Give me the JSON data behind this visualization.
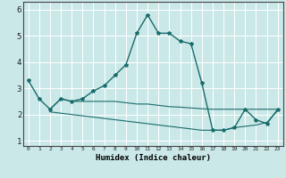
{
  "xlabel": "Humidex (Indice chaleur)",
  "x": [
    0,
    1,
    2,
    3,
    4,
    5,
    6,
    7,
    8,
    9,
    10,
    11,
    12,
    13,
    14,
    15,
    16,
    17,
    18,
    19,
    20,
    21,
    22,
    23
  ],
  "curve_main": [
    3.3,
    2.6,
    2.2,
    2.6,
    2.5,
    2.6,
    2.9,
    3.1,
    3.5,
    3.9,
    5.1,
    5.8,
    5.1,
    5.1,
    4.8,
    4.7,
    3.2,
    1.4,
    1.4,
    1.5,
    2.2,
    1.8,
    1.65,
    2.2
  ],
  "curve_band_top": [
    null,
    null,
    2.2,
    2.6,
    2.5,
    2.5,
    2.5,
    2.5,
    2.5,
    2.45,
    2.4,
    2.4,
    2.35,
    2.3,
    2.28,
    2.25,
    2.22,
    2.2,
    2.2,
    2.2,
    2.2,
    2.2,
    2.2,
    2.2
  ],
  "curve_band_bot": [
    null,
    null,
    2.1,
    2.05,
    2.0,
    1.95,
    1.9,
    1.85,
    1.8,
    1.75,
    1.7,
    1.65,
    1.6,
    1.55,
    1.5,
    1.45,
    1.4,
    1.4,
    1.4,
    1.5,
    1.55,
    1.6,
    1.7,
    2.15
  ],
  "ylim": [
    0.8,
    6.3
  ],
  "yticks": [
    1,
    2,
    3,
    4,
    5,
    6
  ],
  "bg_color": "#cbe8e8",
  "grid_color": "#ffffff",
  "line_color": "#1a6b6b",
  "fig_bg": "#cbe8e8"
}
